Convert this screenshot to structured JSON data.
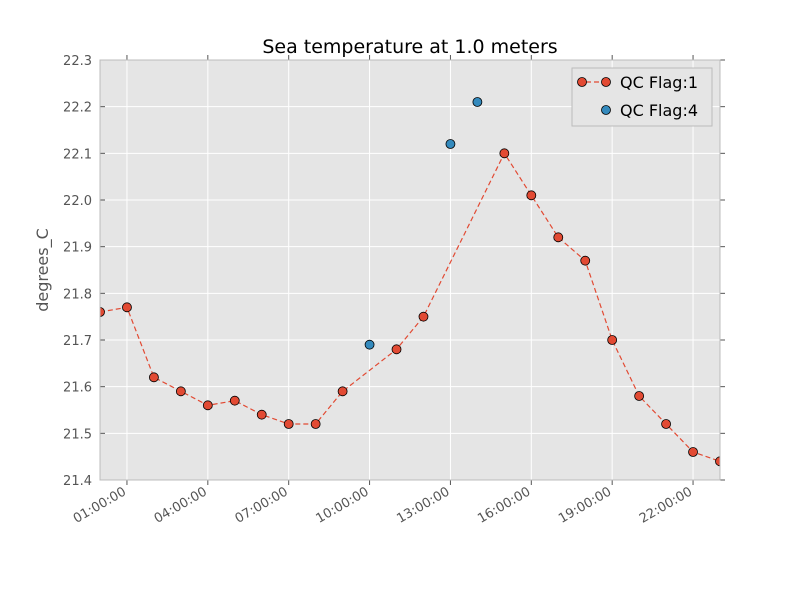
{
  "chart_data": {
    "type": "line",
    "title": "Sea temperature at 1.0 meters",
    "xlabel": "",
    "ylabel": "degrees_C",
    "x_tick_labels": [
      "01:00:00",
      "04:00:00",
      "07:00:00",
      "10:00:00",
      "13:00:00",
      "16:00:00",
      "19:00:00",
      "22:00:00"
    ],
    "x_tick_hours": [
      1,
      4,
      7,
      10,
      13,
      16,
      19,
      22
    ],
    "xlim_hours": [
      0,
      23
    ],
    "ylim": [
      21.4,
      22.3
    ],
    "y_ticks": [
      "21.4",
      "21.5",
      "21.6",
      "21.7",
      "21.8",
      "21.9",
      "22.0",
      "22.1",
      "22.2",
      "22.3"
    ],
    "grid": true,
    "legend_position": "top-right",
    "series": [
      {
        "name": "QC Flag:1",
        "color": "#e24a33",
        "style": "dashed-line-with-markers",
        "x_hours": [
          0,
          1,
          2,
          3,
          4,
          5,
          6,
          7,
          8,
          9,
          11,
          12,
          15,
          16,
          17,
          18,
          19,
          20,
          21,
          22,
          23
        ],
        "values": [
          21.76,
          21.77,
          21.62,
          21.59,
          21.56,
          21.57,
          21.54,
          21.52,
          21.52,
          21.59,
          21.68,
          21.75,
          22.1,
          22.01,
          21.92,
          21.87,
          21.7,
          21.58,
          21.52,
          21.46,
          21.44
        ]
      },
      {
        "name": "QC Flag:4",
        "color": "#348abd",
        "style": "markers",
        "x_hours": [
          10,
          13,
          14
        ],
        "values": [
          21.69,
          22.12,
          22.21
        ]
      }
    ]
  }
}
